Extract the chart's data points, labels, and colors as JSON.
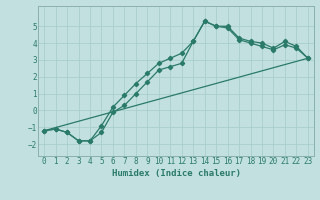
{
  "xlabel": "Humidex (Indice chaleur)",
  "bg_color": "#c2e0e0",
  "line_color": "#2a7a6a",
  "grid_color": "#aacece",
  "spine_color": "#8ab0b0",
  "xlim": [
    -0.5,
    23.5
  ],
  "ylim": [
    -2.7,
    6.2
  ],
  "xticks": [
    0,
    1,
    2,
    3,
    4,
    5,
    6,
    7,
    8,
    9,
    10,
    11,
    12,
    13,
    14,
    15,
    16,
    17,
    18,
    19,
    20,
    21,
    22,
    23
  ],
  "yticks": [
    -2,
    -1,
    0,
    1,
    2,
    3,
    4,
    5
  ],
  "line1_x": [
    0,
    1,
    2,
    3,
    4,
    5,
    6,
    7,
    8,
    9,
    10,
    11,
    12,
    13,
    14,
    15,
    16,
    17,
    18,
    19,
    20,
    21,
    22,
    23
  ],
  "line1_y": [
    -1.2,
    -1.1,
    -1.3,
    -1.8,
    -1.8,
    -1.3,
    -0.1,
    0.3,
    1.0,
    1.7,
    2.4,
    2.6,
    2.8,
    4.1,
    5.3,
    5.0,
    5.0,
    4.3,
    4.1,
    4.0,
    3.7,
    4.1,
    3.8,
    3.1
  ],
  "line2_x": [
    0,
    1,
    2,
    3,
    4,
    5,
    6,
    7,
    8,
    9,
    10,
    11,
    12,
    13,
    14,
    15,
    16,
    17,
    18,
    19,
    20,
    21,
    22,
    23
  ],
  "line2_y": [
    -1.2,
    -1.1,
    -1.3,
    -1.8,
    -1.8,
    -0.9,
    0.2,
    0.9,
    1.6,
    2.2,
    2.8,
    3.1,
    3.4,
    4.1,
    5.3,
    5.0,
    4.9,
    4.2,
    4.0,
    3.8,
    3.6,
    3.9,
    3.7,
    3.1
  ],
  "line3_x": [
    0,
    23
  ],
  "line3_y": [
    -1.2,
    3.1
  ]
}
